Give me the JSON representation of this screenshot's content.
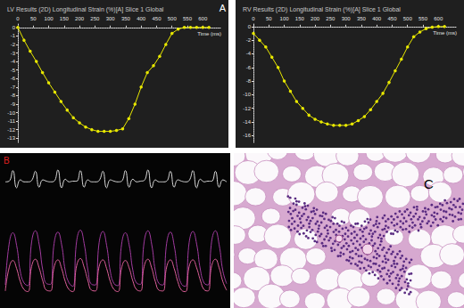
{
  "chart_data": [
    {
      "type": "line",
      "title": "LV Results (2D) Longitudinal Strain (%)[A] Slice 1 Global",
      "annotations": [
        "A"
      ],
      "xlabel": "Time (ms)",
      "x": [
        0,
        20,
        40,
        60,
        80,
        100,
        120,
        140,
        160,
        180,
        200,
        220,
        240,
        260,
        280,
        300,
        320,
        340,
        360,
        380,
        400,
        420,
        440,
        460,
        480,
        500,
        520,
        540,
        560,
        580,
        600,
        620
      ],
      "values": [
        0,
        -1.5,
        -2.8,
        -4,
        -5.3,
        -6.5,
        -7.6,
        -8.7,
        -9.7,
        -10.6,
        -11.2,
        -11.7,
        -12,
        -12.2,
        -12.2,
        -12.2,
        -12.1,
        -11.9,
        -10.7,
        -9,
        -7,
        -5.3,
        -4.5,
        -3.4,
        -2,
        -0.7,
        -0.2,
        0,
        0,
        0,
        0,
        0
      ],
      "color": "#e8e800",
      "marker": "circle",
      "xlim": [
        0,
        660
      ],
      "xticks": [
        0,
        50,
        100,
        150,
        200,
        250,
        300,
        350,
        400,
        450,
        500,
        550,
        600
      ],
      "ylim": [
        -13.5,
        0.5
      ],
      "yticks": [
        0,
        -1,
        -2,
        -3,
        -4,
        -5,
        -6,
        -7,
        -8,
        -9,
        -10,
        -11,
        -12,
        -13
      ],
      "grid": false
    },
    {
      "type": "line",
      "title": "RV Results (2D) Longitudinal Strain (%)[A] Slice 1 Global",
      "xlabel": "Time (ms)",
      "x": [
        0,
        20,
        40,
        60,
        80,
        100,
        120,
        140,
        160,
        180,
        200,
        220,
        240,
        260,
        280,
        300,
        320,
        340,
        360,
        380,
        400,
        420,
        440,
        460,
        480,
        500,
        520,
        540,
        560,
        580,
        600,
        620
      ],
      "values": [
        -1,
        -2,
        -3,
        -4.5,
        -6,
        -8,
        -9.5,
        -11,
        -12,
        -13,
        -13.6,
        -14,
        -14.3,
        -14.5,
        -14.5,
        -14.5,
        -14.3,
        -13.8,
        -13.2,
        -12.2,
        -11,
        -9.8,
        -8.2,
        -6.5,
        -4.8,
        -3,
        -1.5,
        -0.8,
        -0.3,
        -0.1,
        0,
        0
      ],
      "color": "#e8e800",
      "marker": "circle",
      "xlim": [
        0,
        660
      ],
      "xticks": [
        0,
        50,
        100,
        150,
        200,
        250,
        300,
        350,
        400,
        450,
        500,
        550,
        600
      ],
      "ylim": [
        -17,
        0.5
      ],
      "yticks": [
        0,
        -2,
        -4,
        -6,
        -8,
        -10,
        -12,
        -14,
        -16
      ],
      "grid": false
    },
    {
      "type": "line",
      "annotations": [
        "B"
      ],
      "tick_labels": false,
      "grid": false,
      "x": [
        0,
        1,
        2,
        3,
        4,
        5,
        6,
        7,
        8,
        9,
        10,
        11,
        12,
        13,
        14,
        15,
        16,
        17,
        18,
        19,
        20,
        21,
        22,
        23,
        24,
        25,
        26,
        27,
        28,
        29,
        30,
        31,
        32,
        33,
        34,
        35,
        36,
        37,
        38,
        39,
        40,
        41,
        42,
        43,
        44,
        45,
        46,
        47,
        48,
        49,
        50,
        51,
        52,
        53,
        54,
        55,
        56,
        57,
        58,
        59
      ],
      "series": [
        {
          "color": "#d8d8d8",
          "values": [
            180,
            181,
            197,
            171,
            183,
            180,
            180,
            182,
            196,
            172,
            183,
            181,
            180,
            181,
            198,
            171,
            184,
            180,
            181,
            181,
            197,
            172,
            183,
            180,
            180,
            182,
            196,
            171,
            183,
            181,
            180,
            181,
            197,
            172,
            184,
            180,
            181,
            182,
            198,
            171,
            183,
            180,
            180,
            181,
            196,
            172,
            183,
            181,
            180,
            182,
            197,
            171,
            184,
            180,
            181,
            181,
            196,
            172,
            183,
            180
          ]
        },
        {
          "color": "#a23ba0",
          "values": [
            24,
            86,
            103,
            84,
            44,
            27,
            23,
            89,
            106,
            86,
            46,
            26,
            25,
            87,
            104,
            85,
            45,
            27,
            22,
            90,
            107,
            87,
            47,
            25,
            24,
            88,
            105,
            84,
            44,
            26,
            23,
            86,
            103,
            85,
            46,
            27,
            25,
            89,
            106,
            86,
            45,
            26,
            24,
            87,
            104,
            84,
            44,
            25,
            22,
            88,
            105,
            86,
            47,
            27,
            24,
            90,
            106,
            85,
            45,
            26
          ]
        },
        {
          "color": "#e0609a",
          "values": [
            15,
            50,
            61,
            49,
            29,
            17,
            14,
            52,
            63,
            50,
            30,
            16,
            15,
            51,
            62,
            49,
            29,
            17,
            14,
            53,
            64,
            51,
            31,
            16,
            15,
            52,
            62,
            49,
            29,
            17,
            14,
            50,
            61,
            50,
            30,
            17,
            15,
            52,
            63,
            50,
            29,
            16,
            15,
            51,
            62,
            49,
            29,
            16,
            14,
            52,
            62,
            50,
            31,
            17,
            15,
            53,
            63,
            50,
            29,
            16
          ]
        }
      ],
      "xlim": [
        0,
        59
      ],
      "ylim": [
        0,
        210
      ]
    }
  ],
  "image": {
    "label": "C"
  }
}
